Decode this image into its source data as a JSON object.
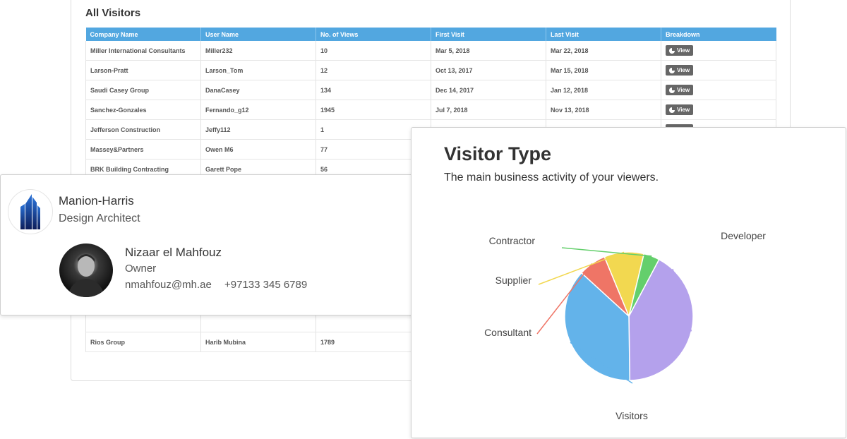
{
  "visitors": {
    "title": "All Visitors",
    "columns": [
      "Company Name",
      "User Name",
      "No. of Views",
      "First Visit",
      "Last Visit",
      "Breakdown"
    ],
    "view_label": "View",
    "rows": [
      {
        "company": "Miller International Consultants",
        "user": "Miller232",
        "views": "10",
        "first": "Mar 5, 2018",
        "last": "Mar 22, 2018"
      },
      {
        "company": "Larson-Pratt",
        "user": "Larson_Tom",
        "views": "12",
        "first": "Oct 13, 2017",
        "last": "Mar 15, 2018"
      },
      {
        "company": "Saudi Casey Group",
        "user": "DanaCasey",
        "views": "134",
        "first": "Dec 14, 2017",
        "last": "Jan 12, 2018"
      },
      {
        "company": "Sanchez-Gonzales",
        "user": "Fernando_g12",
        "views": "1945",
        "first": "Jul 7, 2018",
        "last": "Nov 13, 2018"
      },
      {
        "company": "Jefferson Construction",
        "user": "Jeffy112",
        "views": "1",
        "first": "",
        "last": ""
      },
      {
        "company": "Massey&Partners",
        "user": "Owen M6",
        "views": "77",
        "first": "",
        "last": ""
      },
      {
        "company": "BRK Building Contracting",
        "user": "Garett Pope",
        "views": "56",
        "first": "",
        "last": ""
      }
    ],
    "last_row": {
      "company": "Rios Group",
      "user": "Harib Mubina",
      "views": "1789"
    }
  },
  "contact": {
    "company": "Manion-Harris",
    "role": "Design Architect",
    "name": "Nizaar el Mahfouz",
    "title": "Owner",
    "email": "nmahfouz@mh.ae",
    "phone": "+97133 345 6789"
  },
  "chart": {
    "title": "Visitor Type",
    "subtitle": "The main business activity of your viewers."
  },
  "chart_data": {
    "type": "pie",
    "title": "Visitor Type",
    "subtitle": "The main business activity of your viewers.",
    "slices": [
      {
        "label": "Developer",
        "value": 42,
        "color": "#b4a1ec"
      },
      {
        "label": "Visitors",
        "value": 37,
        "color": "#63b3ea"
      },
      {
        "label": "Consultant",
        "value": 7,
        "color": "#ef7566"
      },
      {
        "label": "Supplier",
        "value": 10,
        "color": "#f2d850"
      },
      {
        "label": "Contractor",
        "value": 4,
        "color": "#64cf6c"
      }
    ]
  }
}
